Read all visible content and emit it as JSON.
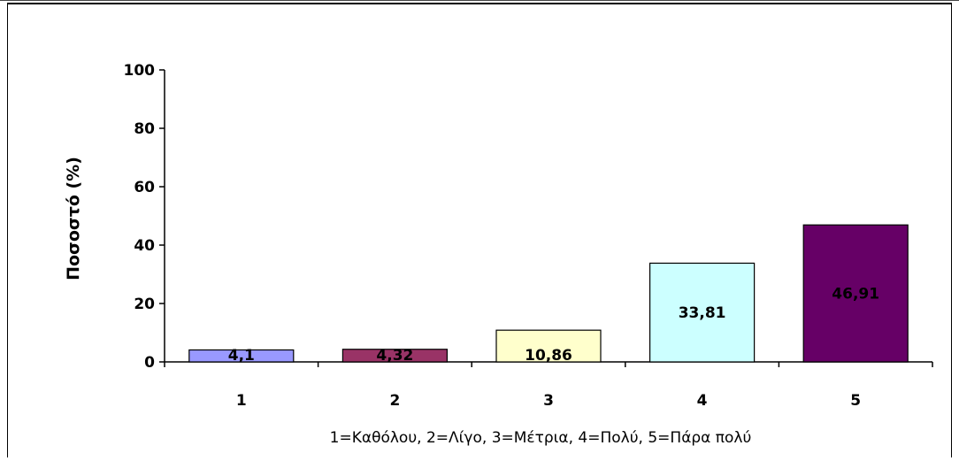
{
  "chart_data": {
    "type": "bar",
    "categories": [
      "1",
      "2",
      "3",
      "4",
      "5"
    ],
    "values": [
      4.1,
      4.32,
      10.86,
      33.81,
      46.91
    ],
    "data_labels": [
      "4,1",
      "4,32",
      "10,86",
      "33,81",
      "46,91"
    ],
    "colors": [
      "#9999ff",
      "#993366",
      "#ffffcc",
      "#ccffff",
      "#660066"
    ],
    "ylabel": "Ποσοστό (%)",
    "xlabel": "1=Καθόλου, 2=Λίγο, 3=Μέτρια, 4=Πολύ, 5=Πάρα πολύ",
    "ylim": [
      0,
      100
    ],
    "yticks": [
      "0",
      "20",
      "40",
      "60",
      "80",
      "100"
    ],
    "grid": false,
    "legend": "none"
  }
}
